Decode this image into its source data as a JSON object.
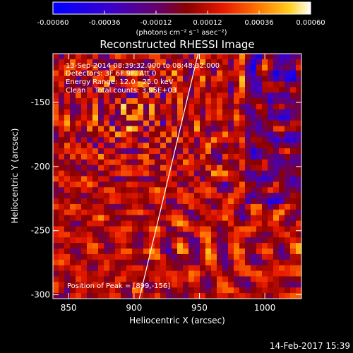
{
  "chart_data": {
    "type": "heatmap",
    "title": "Reconstructed RHESSI Image",
    "xlabel": "Heliocentric X (arcsec)",
    "ylabel": "Heliocentric Y (arcsec)",
    "xlim": [
      838,
      1028
    ],
    "ylim": [
      -303,
      -112
    ],
    "x_ticks": [
      "850",
      "900",
      "950",
      "1000"
    ],
    "x_tick_values": [
      850,
      900,
      950,
      1000
    ],
    "y_ticks": [
      "-150",
      "-200",
      "-250",
      "-300"
    ],
    "y_tick_values": [
      -150,
      -200,
      -250,
      -300
    ],
    "colorbar": {
      "min": -0.0006,
      "max": 0.0006,
      "tick_labels": [
        "-0.00060",
        "-0.00036",
        "-0.00012",
        "0.00012",
        "0.00036",
        "0.00060"
      ],
      "tick_values": [
        -0.0006,
        -0.00036,
        -0.00012,
        0.00012,
        0.00036,
        0.0006
      ],
      "unit_label": "(photons cm⁻² s⁻¹ asec⁻²)"
    },
    "annotations": [
      "13-Sep-2014 08:39:32.000 to 08:48:32.000",
      "Detectors: 3F 6F 9F, Att 0",
      "Energy Range: 12.0 - 25.0 keV",
      "Clean    Total counts: 3.95E+03"
    ],
    "peak_label": "Position of Peak = [899,-156]",
    "peak": [
      899,
      -156
    ],
    "limb_line": [
      [
        904,
        -303
      ],
      [
        949,
        -112
      ]
    ]
  },
  "footer": {
    "timestamp": "14-Feb-2017 15:39"
  }
}
